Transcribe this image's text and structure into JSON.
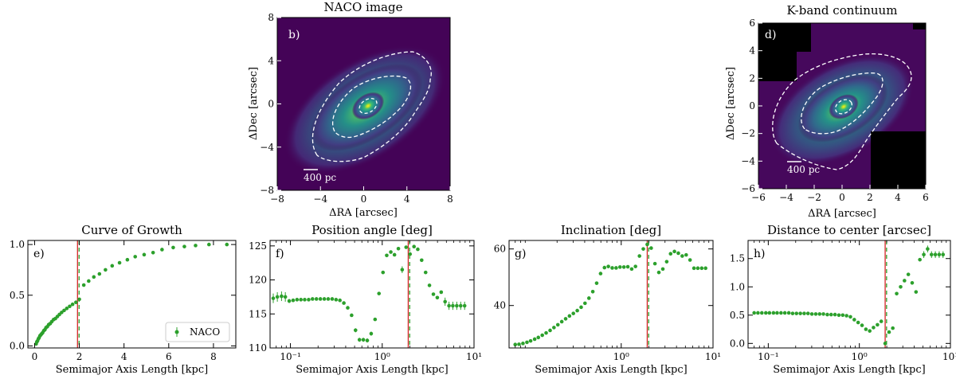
{
  "figure": {
    "panel_b": {
      "title": "NACO image",
      "label": "b)",
      "xlabel": "ΔRA [arcsec]",
      "ylabel": "ΔDec [arcsec]",
      "scalebar": "400 pc",
      "xticks": [
        "−8",
        "−4",
        "0",
        "4",
        "8"
      ],
      "yticks": [
        "8",
        "4",
        "0",
        "−4",
        "−8"
      ]
    },
    "panel_d": {
      "title": "K-band continuum",
      "label": "d)",
      "xlabel": "ΔRA [arcsec]",
      "ylabel": "ΔDec [arcsec]",
      "scalebar": "400 pc",
      "xticks": [
        "−6",
        "−4",
        "−2",
        "0",
        "2",
        "4",
        "6"
      ],
      "yticks": [
        "6",
        "4",
        "2",
        "0",
        "−2",
        "−4",
        "−6"
      ]
    },
    "colors": {
      "points": "#2ca02c",
      "vline_red": "#d62728",
      "vline_green": "#2ca02c",
      "image_bg": "#440154",
      "contour": "#ffffff"
    }
  },
  "chart_data": [
    {
      "type": "scatter",
      "panel": "e)",
      "title": "Curve of Growth",
      "xlabel": "Semimajor Axis Length [kpc]",
      "ylabel": "",
      "xscale": "linear",
      "xlim": [
        -0.3,
        9.0
      ],
      "ylim": [
        -0.02,
        1.04
      ],
      "xticks": [
        0,
        2,
        4,
        6,
        8
      ],
      "yticks": [
        0.0,
        0.5,
        1.0
      ],
      "ytick_labels": [
        "0.0",
        "0.5",
        "1.0"
      ],
      "legend": {
        "label": "NACO",
        "position": "lower-right"
      },
      "vlines": [
        1.92,
        1.99
      ],
      "series": [
        {
          "name": "NACO",
          "x": [
            0.07,
            0.1,
            0.13,
            0.17,
            0.2,
            0.24,
            0.28,
            0.32,
            0.36,
            0.41,
            0.46,
            0.51,
            0.57,
            0.63,
            0.7,
            0.77,
            0.85,
            0.93,
            1.02,
            1.11,
            1.21,
            1.32,
            1.44,
            1.57,
            1.7,
            1.85,
            2.0,
            2.2,
            2.42,
            2.65,
            2.9,
            3.17,
            3.47,
            3.8,
            4.15,
            4.5,
            4.9,
            5.3,
            5.7,
            6.2,
            6.7,
            7.2,
            7.8,
            8.6
          ],
          "y": [
            0.02,
            0.04,
            0.05,
            0.07,
            0.08,
            0.1,
            0.11,
            0.12,
            0.13,
            0.15,
            0.16,
            0.18,
            0.19,
            0.21,
            0.22,
            0.24,
            0.26,
            0.27,
            0.29,
            0.31,
            0.33,
            0.35,
            0.37,
            0.39,
            0.41,
            0.43,
            0.46,
            0.6,
            0.64,
            0.68,
            0.71,
            0.75,
            0.79,
            0.82,
            0.85,
            0.88,
            0.9,
            0.92,
            0.95,
            0.97,
            0.98,
            0.99,
            1.0,
            1.0
          ]
        }
      ]
    },
    {
      "type": "scatter",
      "panel": "f)",
      "title": "Position angle [deg]",
      "xlabel": "Semimajor Axis Length [kpc]",
      "ylabel": "",
      "xscale": "log",
      "xlim": [
        0.06,
        10
      ],
      "ylim": [
        110,
        125.8
      ],
      "xtick_labels": [
        "10⁻¹",
        "10⁰",
        "10¹"
      ],
      "xticks": [
        0.1,
        1,
        10
      ],
      "yticks": [
        110,
        115,
        120,
        125
      ],
      "vlines": [
        1.92,
        1.99
      ],
      "series": [
        {
          "name": "",
          "x": [
            0.065,
            0.072,
            0.08,
            0.088,
            0.097,
            0.107,
            0.118,
            0.13,
            0.143,
            0.158,
            0.174,
            0.192,
            0.212,
            0.234,
            0.258,
            0.285,
            0.314,
            0.346,
            0.382,
            0.421,
            0.464,
            0.512,
            0.565,
            0.623,
            0.687,
            0.758,
            0.836,
            0.922,
            1.02,
            1.12,
            1.24,
            1.36,
            1.5,
            1.65,
            1.82,
            2.01,
            2.22,
            2.44,
            2.69,
            2.97,
            3.27,
            3.61,
            3.98,
            4.39,
            4.84,
            5.34,
            5.88,
            6.49,
            7.16,
            7.9
          ],
          "y": [
            117.3,
            117.5,
            117.6,
            117.5,
            116.9,
            117.0,
            117.1,
            117.1,
            117.1,
            117.1,
            117.2,
            117.2,
            117.2,
            117.2,
            117.2,
            117.2,
            117.1,
            117.0,
            116.6,
            115.9,
            114.8,
            112.6,
            111.2,
            111.2,
            111.1,
            112.1,
            114.2,
            118.0,
            121.1,
            123.6,
            124.1,
            123.7,
            124.6,
            121.5,
            124.8,
            123.8,
            124.9,
            124.5,
            122.9,
            121.1,
            119.2,
            117.9,
            117.4,
            118.2,
            116.8,
            116.2,
            116.2,
            116.2,
            116.2,
            116.2
          ],
          "err": [
            0.7,
            0.7,
            0.7,
            0.7,
            0.3,
            0,
            0,
            0,
            0,
            0,
            0,
            0,
            0,
            0,
            0,
            0,
            0,
            0,
            0,
            0,
            0,
            0.3,
            0.3,
            0.3,
            0.3,
            0.3,
            0,
            0,
            0,
            0,
            0,
            0,
            0,
            0.5,
            0,
            0,
            0,
            0,
            0,
            0,
            0,
            0,
            0,
            0,
            0.6,
            0.6,
            0.6,
            0.6,
            0.6,
            0.6
          ]
        }
      ]
    },
    {
      "type": "scatter",
      "panel": "g)",
      "title": "Inclination [deg]",
      "xlabel": "Semimajor Axis Length [kpc]",
      "ylabel": "",
      "xscale": "log",
      "xlim": [
        0.06,
        10
      ],
      "ylim": [
        25,
        63
      ],
      "xtick_labels": [
        "10⁰",
        "10¹"
      ],
      "xticks": [
        1,
        10
      ],
      "yticks": [
        40,
        60
      ],
      "vlines": [
        1.92,
        1.99
      ],
      "series": [
        {
          "name": "",
          "x": [
            0.07,
            0.077,
            0.085,
            0.094,
            0.103,
            0.114,
            0.125,
            0.138,
            0.152,
            0.168,
            0.185,
            0.204,
            0.225,
            0.248,
            0.273,
            0.301,
            0.332,
            0.366,
            0.403,
            0.445,
            0.49,
            0.54,
            0.596,
            0.657,
            0.724,
            0.798,
            0.88,
            0.97,
            1.07,
            1.18,
            1.3,
            1.43,
            1.58,
            1.74,
            1.92,
            2.12,
            2.33,
            2.57,
            2.84,
            3.13,
            3.45,
            3.8,
            4.19,
            4.62,
            5.1,
            5.62,
            6.2,
            6.83,
            7.53,
            8.3
          ],
          "y": [
            26.2,
            26.3,
            26.6,
            27.0,
            27.5,
            28.1,
            28.7,
            29.5,
            30.3,
            31.2,
            32.2,
            33.2,
            34.3,
            35.3,
            36.3,
            37.2,
            38.2,
            39.4,
            40.8,
            42.6,
            44.9,
            47.9,
            51.3,
            53.4,
            53.8,
            53.3,
            53.3,
            53.6,
            53.6,
            53.7,
            52.9,
            53.8,
            57.5,
            60.0,
            61.6,
            60.3,
            54.8,
            51.7,
            52.9,
            55.5,
            58.3,
            59.1,
            58.5,
            57.5,
            57.9,
            56.1,
            53.2,
            53.2,
            53.2,
            53.2
          ]
        }
      ]
    },
    {
      "type": "scatter",
      "panel": "h)",
      "title": "Distance to center [arcsec]",
      "xlabel": "Semimajor Axis Length [kpc]",
      "ylabel": "",
      "xscale": "log",
      "xlim": [
        0.06,
        10
      ],
      "ylim": [
        -0.08,
        1.82
      ],
      "xtick_labels": [
        "10⁻¹",
        "10⁰",
        "10¹"
      ],
      "xticks": [
        0.1,
        1,
        10
      ],
      "yticks": [
        0.0,
        0.5,
        1.0,
        1.5
      ],
      "ytick_labels": [
        "0.0",
        "0.5",
        "1.0",
        "1.5"
      ],
      "vlines": [
        1.92,
        1.99
      ],
      "series": [
        {
          "name": "",
          "x": [
            0.07,
            0.077,
            0.085,
            0.094,
            0.103,
            0.114,
            0.125,
            0.138,
            0.152,
            0.168,
            0.185,
            0.204,
            0.225,
            0.248,
            0.273,
            0.301,
            0.332,
            0.366,
            0.403,
            0.445,
            0.49,
            0.54,
            0.596,
            0.657,
            0.724,
            0.798,
            0.88,
            0.97,
            1.07,
            1.18,
            1.3,
            1.43,
            1.58,
            1.74,
            1.92,
            2.12,
            2.33,
            2.57,
            2.84,
            3.13,
            3.45,
            3.8,
            4.19,
            4.62,
            5.1,
            5.62,
            6.2,
            6.83,
            7.53,
            8.3
          ],
          "y": [
            0.54,
            0.54,
            0.54,
            0.54,
            0.54,
            0.54,
            0.54,
            0.54,
            0.54,
            0.54,
            0.53,
            0.53,
            0.53,
            0.53,
            0.53,
            0.52,
            0.52,
            0.52,
            0.52,
            0.51,
            0.51,
            0.51,
            0.5,
            0.5,
            0.49,
            0.47,
            0.42,
            0.37,
            0.32,
            0.25,
            0.22,
            0.28,
            0.33,
            0.39,
            0.0,
            0.2,
            0.27,
            0.88,
            1.0,
            1.11,
            1.22,
            1.07,
            0.91,
            1.48,
            1.57,
            1.67,
            1.57,
            1.57,
            1.57,
            1.57
          ],
          "err": [
            0,
            0,
            0,
            0,
            0,
            0,
            0,
            0,
            0,
            0,
            0,
            0,
            0,
            0,
            0,
            0,
            0,
            0,
            0,
            0,
            0,
            0,
            0,
            0,
            0,
            0,
            0,
            0,
            0,
            0,
            0,
            0,
            0,
            0,
            0,
            0,
            0,
            0,
            0,
            0,
            0,
            0,
            0,
            0,
            0.06,
            0.06,
            0.06,
            0.06,
            0.06,
            0.06
          ]
        }
      ]
    }
  ]
}
